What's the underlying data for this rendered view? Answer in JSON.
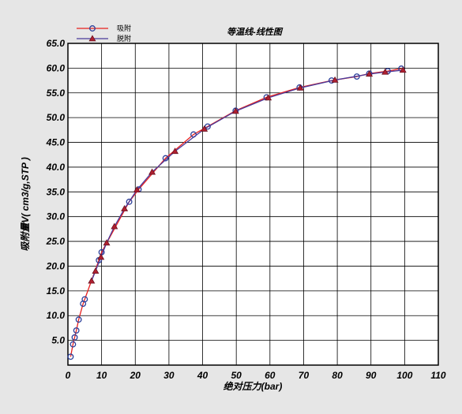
{
  "chart_data": {
    "type": "line",
    "title": "等温线-线性图",
    "xlabel": "绝对压力(bar)",
    "ylabel": "吸附量V( cm3/g,STP )",
    "xlim": [
      0,
      110
    ],
    "ylim": [
      0,
      65
    ],
    "xticks": [
      0,
      10,
      20,
      30,
      40,
      50,
      60,
      70,
      80,
      90,
      100,
      110
    ],
    "yticks": [
      5,
      10,
      15,
      20,
      25,
      30,
      35,
      40,
      45,
      50,
      55,
      60,
      65
    ],
    "ytick_labels": [
      "5.0",
      "10.0",
      "15.0",
      "20.0",
      "25.0",
      "30.0",
      "35.0",
      "40.0",
      "45.0",
      "50.0",
      "55.0",
      "60.0",
      "65.0"
    ],
    "grid": true,
    "legend": "top-left",
    "series": [
      {
        "name": "吸附",
        "marker": "circle",
        "color": "#e8201e",
        "marker_color": "#2b3f9a",
        "x": [
          0.8,
          1.5,
          2.0,
          2.5,
          3.2,
          4.5,
          5.0,
          9.2,
          10.0,
          18.2,
          21.0,
          29.0,
          37.3,
          41.5,
          49.8,
          59.0,
          68.8,
          78.3,
          85.8,
          89.5,
          95.0,
          99.0
        ],
        "y": [
          1.7,
          4.2,
          5.6,
          7.0,
          9.2,
          12.4,
          13.3,
          21.2,
          22.8,
          33.0,
          35.5,
          41.8,
          46.6,
          48.2,
          51.4,
          54.1,
          56.1,
          57.5,
          58.3,
          58.9,
          59.4,
          59.9
        ]
      },
      {
        "name": "脱附",
        "marker": "triangle",
        "color": "#4a3a9a",
        "marker_color": "#b02030",
        "x": [
          7.0,
          8.2,
          9.8,
          11.5,
          13.8,
          16.8,
          20.5,
          25.0,
          31.8,
          40.5,
          49.8,
          59.5,
          69.0,
          79.3,
          89.5,
          94.2,
          99.5
        ],
        "y": [
          17.0,
          19.0,
          21.8,
          24.7,
          28.0,
          31.6,
          35.4,
          39.0,
          43.2,
          47.7,
          51.3,
          54.0,
          56.0,
          57.6,
          58.8,
          59.2,
          59.6
        ]
      }
    ]
  }
}
